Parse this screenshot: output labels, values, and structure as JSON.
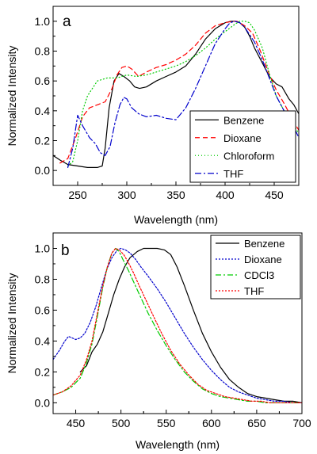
{
  "chart_data": [
    {
      "type": "line",
      "panel_label": "a",
      "xlabel": "Wavelength (nm)",
      "ylabel": "Normalized Intensity",
      "xlim": [
        225,
        475
      ],
      "ylim": [
        -0.1,
        1.1
      ],
      "xticks": [
        250,
        300,
        350,
        400,
        450
      ],
      "yticks": [
        0.0,
        0.2,
        0.4,
        0.6,
        0.8,
        1.0
      ],
      "xtick_labels": [
        "250",
        "300",
        "350",
        "400",
        "450"
      ],
      "ytick_labels": [
        "0.0",
        "0.2",
        "0.4",
        "0.6",
        "0.8",
        "1.0"
      ],
      "grid": false,
      "legend_position": "bottom-right",
      "series": [
        {
          "name": "Benzene",
          "color": "#000000",
          "dash": "solid",
          "x": [
            225,
            232,
            240,
            250,
            260,
            270,
            275,
            278,
            282,
            287,
            292,
            297,
            303,
            308,
            313,
            320,
            330,
            340,
            350,
            360,
            370,
            380,
            390,
            400,
            406,
            410,
            415,
            420,
            425,
            430,
            438,
            445,
            452,
            458,
            465,
            470,
            475
          ],
          "y": [
            0.1,
            0.07,
            0.04,
            0.03,
            0.02,
            0.02,
            0.03,
            0.15,
            0.42,
            0.6,
            0.65,
            0.63,
            0.6,
            0.56,
            0.55,
            0.56,
            0.6,
            0.63,
            0.66,
            0.7,
            0.78,
            0.88,
            0.95,
            0.99,
            1.0,
            1.0,
            0.99,
            0.96,
            0.9,
            0.82,
            0.72,
            0.63,
            0.58,
            0.56,
            0.48,
            0.44,
            0.38
          ]
        },
        {
          "name": "Dioxane",
          "color": "#ff0000",
          "dash": "6,4",
          "x": [
            232,
            240,
            248,
            255,
            262,
            270,
            278,
            285,
            290,
            295,
            300,
            305,
            312,
            320,
            330,
            340,
            350,
            360,
            370,
            380,
            390,
            400,
            408,
            412,
            420,
            428,
            436,
            444,
            452,
            460,
            468,
            475
          ],
          "y": [
            0.05,
            0.08,
            0.22,
            0.36,
            0.42,
            0.44,
            0.46,
            0.55,
            0.64,
            0.69,
            0.7,
            0.68,
            0.63,
            0.66,
            0.69,
            0.71,
            0.74,
            0.78,
            0.84,
            0.92,
            0.97,
            0.99,
            1.0,
            1.0,
            0.97,
            0.92,
            0.8,
            0.66,
            0.54,
            0.45,
            0.35,
            0.27
          ]
        },
        {
          "name": "Chloroform",
          "color": "#00cc00",
          "dash": "1,3",
          "x": [
            240,
            245,
            250,
            255,
            260,
            270,
            280,
            290,
            300,
            310,
            320,
            330,
            340,
            350,
            360,
            370,
            380,
            390,
            400,
            410,
            415,
            420,
            425,
            430,
            438,
            445,
            452,
            460,
            468,
            475
          ],
          "y": [
            0.03,
            0.06,
            0.2,
            0.4,
            0.5,
            0.6,
            0.62,
            0.62,
            0.64,
            0.63,
            0.64,
            0.66,
            0.68,
            0.7,
            0.73,
            0.77,
            0.82,
            0.88,
            0.93,
            0.98,
            1.0,
            1.0,
            0.99,
            0.94,
            0.82,
            0.65,
            0.5,
            0.4,
            0.32,
            0.25
          ]
        },
        {
          "name": "THF",
          "color": "#0000cc",
          "dash": "8,3,2,3",
          "x": [
            240,
            245,
            250,
            255,
            262,
            268,
            273,
            278,
            283,
            288,
            293,
            297,
            300,
            305,
            312,
            320,
            330,
            340,
            350,
            360,
            370,
            380,
            390,
            400,
            405,
            410,
            415,
            420,
            430,
            438,
            445,
            452,
            460,
            468,
            475
          ],
          "y": [
            0.02,
            0.15,
            0.37,
            0.3,
            0.22,
            0.18,
            0.12,
            0.1,
            0.16,
            0.32,
            0.44,
            0.49,
            0.48,
            0.42,
            0.38,
            0.36,
            0.37,
            0.35,
            0.34,
            0.42,
            0.55,
            0.7,
            0.85,
            0.95,
            0.99,
            1.0,
            0.99,
            0.96,
            0.86,
            0.74,
            0.62,
            0.5,
            0.4,
            0.32,
            0.22
          ]
        }
      ]
    },
    {
      "type": "line",
      "panel_label": "b",
      "xlabel": "Wavelength (nm)",
      "ylabel": "Normalized Intensity",
      "xlim": [
        425,
        700
      ],
      "ylim": [
        -0.07,
        1.1
      ],
      "xticks": [
        450,
        500,
        550,
        600,
        650,
        700
      ],
      "yticks": [
        0.0,
        0.2,
        0.4,
        0.6,
        0.8,
        1.0
      ],
      "xtick_labels": [
        "450",
        "500",
        "550",
        "600",
        "650",
        "700"
      ],
      "ytick_labels": [
        "0.0",
        "0.2",
        "0.4",
        "0.6",
        "0.8",
        "1.0"
      ],
      "grid": false,
      "legend_position": "top-right",
      "series": [
        {
          "name": "Benzene",
          "color": "#000000",
          "dash": "solid",
          "x": [
            455,
            462,
            468,
            474,
            480,
            486,
            492,
            498,
            504,
            510,
            518,
            525,
            532,
            540,
            548,
            555,
            562,
            570,
            580,
            590,
            600,
            610,
            620,
            630,
            640,
            650,
            660,
            670,
            680,
            690,
            700
          ],
          "y": [
            0.2,
            0.24,
            0.33,
            0.38,
            0.46,
            0.58,
            0.7,
            0.8,
            0.88,
            0.94,
            0.98,
            1.0,
            1.0,
            1.0,
            0.99,
            0.96,
            0.88,
            0.76,
            0.6,
            0.45,
            0.33,
            0.23,
            0.15,
            0.1,
            0.06,
            0.04,
            0.03,
            0.02,
            0.01,
            0.01,
            0.0
          ]
        },
        {
          "name": "Dioxane",
          "color": "#0000cc",
          "dash": "2,2",
          "x": [
            425,
            432,
            438,
            442,
            446,
            450,
            455,
            460,
            466,
            472,
            478,
            484,
            490,
            496,
            500,
            505,
            510,
            516,
            522,
            530,
            540,
            550,
            560,
            570,
            580,
            590,
            600,
            610,
            620,
            630,
            640,
            650,
            660,
            670,
            680,
            690,
            700
          ],
          "y": [
            0.28,
            0.34,
            0.4,
            0.43,
            0.42,
            0.41,
            0.42,
            0.45,
            0.52,
            0.62,
            0.74,
            0.86,
            0.94,
            0.99,
            1.0,
            0.99,
            0.97,
            0.93,
            0.88,
            0.82,
            0.74,
            0.65,
            0.55,
            0.45,
            0.36,
            0.28,
            0.21,
            0.15,
            0.1,
            0.07,
            0.05,
            0.03,
            0.02,
            0.01,
            0.01,
            0.0,
            0.0
          ]
        },
        {
          "name": "CDCl3",
          "color": "#00cc00",
          "dash": "7,3,2,3",
          "x": [
            425,
            435,
            445,
            455,
            462,
            468,
            474,
            480,
            485,
            490,
            494,
            498,
            502,
            508,
            515,
            522,
            530,
            540,
            550,
            560,
            570,
            580,
            590,
            600,
            610,
            620,
            630,
            640,
            650,
            660,
            670,
            680,
            690,
            700
          ],
          "y": [
            0.05,
            0.07,
            0.1,
            0.16,
            0.26,
            0.38,
            0.56,
            0.75,
            0.88,
            0.97,
            1.0,
            0.98,
            0.93,
            0.86,
            0.77,
            0.68,
            0.58,
            0.47,
            0.37,
            0.28,
            0.2,
            0.14,
            0.09,
            0.06,
            0.04,
            0.03,
            0.02,
            0.01,
            0.01,
            0.0,
            0.0,
            0.0,
            0.0,
            0.0
          ]
        },
        {
          "name": "THF",
          "color": "#ff0000",
          "dash": "2,2",
          "x": [
            425,
            435,
            445,
            455,
            462,
            468,
            474,
            480,
            485,
            490,
            494,
            498,
            503,
            508,
            514,
            520,
            528,
            536,
            545,
            555,
            565,
            575,
            585,
            595,
            605,
            615,
            625,
            635,
            645,
            655,
            665,
            675,
            685,
            700
          ],
          "y": [
            0.05,
            0.07,
            0.11,
            0.18,
            0.28,
            0.4,
            0.58,
            0.76,
            0.88,
            0.97,
            1.0,
            0.99,
            0.96,
            0.91,
            0.84,
            0.76,
            0.66,
            0.56,
            0.45,
            0.34,
            0.25,
            0.18,
            0.12,
            0.08,
            0.06,
            0.04,
            0.03,
            0.02,
            0.01,
            0.01,
            0.0,
            0.0,
            0.0,
            0.0
          ]
        }
      ]
    }
  ]
}
